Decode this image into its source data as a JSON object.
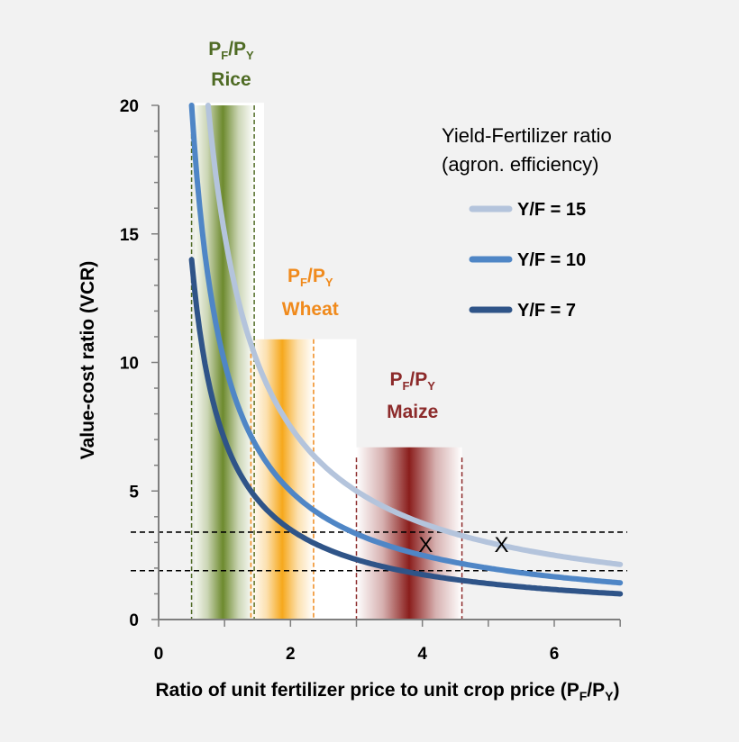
{
  "chart_data": {
    "type": "line",
    "xlabel_main": "Ratio of unit fertilizer price to unit crop price (P",
    "xlabel_sub1": "F",
    "xlabel_mid": "/P",
    "xlabel_sub2": "Y",
    "xlabel_end": ")",
    "ylabel": "Value-cost ratio (VCR)",
    "xlim": [
      0,
      7
    ],
    "ylim": [
      0,
      20
    ],
    "x_ticks": [
      "0",
      "2",
      "4",
      "6"
    ],
    "y_ticks": [
      "0",
      "5",
      "10",
      "15",
      "20"
    ],
    "legend_title_1": "Yield-Fertilizer ratio",
    "legend_title_2": "(agron. efficiency)",
    "series": [
      {
        "name": "Y/F = 15",
        "yield_fertilizer_ratio": 15,
        "x_start": 0.75,
        "x_end": 7,
        "color": "#b4c4dc"
      },
      {
        "name": "Y/F = 10",
        "yield_fertilizer_ratio": 10,
        "x_start": 0.5,
        "x_end": 7,
        "color": "#4f86c6"
      },
      {
        "name": "Y/F = 7",
        "yield_fertilizer_ratio": 7,
        "x_start": 0.5,
        "x_end": 7,
        "color": "#2f5488"
      }
    ],
    "price_ratio_ranges": [
      {
        "crop": "Rice",
        "x_min": 0.5,
        "x_max": 1.45,
        "color": "#6d8a2e",
        "label_color": "#4f6b24"
      },
      {
        "crop": "Wheat",
        "x_min": 1.4,
        "x_max": 2.35,
        "color": "#f6a81c",
        "label_color": "#f08a1c"
      },
      {
        "crop": "Maize",
        "x_min": 3.0,
        "x_max": 4.6,
        "color": "#8a1e1c",
        "label_color": "#8c2a2a"
      }
    ],
    "range_label_main": "P",
    "range_label_sub1": "F",
    "range_label_mid": "/P",
    "range_label_sub2": "Y",
    "reference_lines_vcr": [
      3.4,
      1.9
    ],
    "markers": [
      {
        "label": "X",
        "x": 4.05,
        "y": 2.95
      },
      {
        "label": "X",
        "x": 5.2,
        "y": 2.95
      }
    ]
  }
}
